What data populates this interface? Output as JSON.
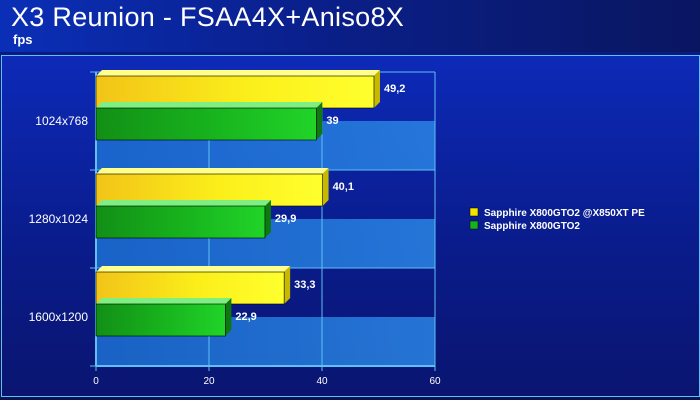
{
  "header": {
    "title": "X3 Reunion - FSAA4X+Aniso8X",
    "subtitle": "fps"
  },
  "chart_data": {
    "type": "bar",
    "orientation": "horizontal",
    "title": "X3 Reunion - FSAA4X+Aniso8X",
    "subtitle": "fps",
    "categories": [
      "1024x768",
      "1280x1024",
      "1600x1200"
    ],
    "series": [
      {
        "name": "Sapphire X800GTO2 @X850XT PE",
        "values": [
          49.2,
          40.1,
          33.3
        ],
        "labels": [
          "49,2",
          "40,1",
          "33,3"
        ],
        "color": "#f5e400"
      },
      {
        "name": "Sapphire X800GTO2",
        "values": [
          39,
          29.9,
          22.9
        ],
        "labels": [
          "39",
          "29,9",
          "22,9"
        ],
        "color": "#16b41c"
      }
    ],
    "xlim": [
      0,
      60
    ],
    "x_ticks": [
      "0",
      "20",
      "40",
      "60"
    ],
    "grid": true,
    "legend_position": "right"
  }
}
